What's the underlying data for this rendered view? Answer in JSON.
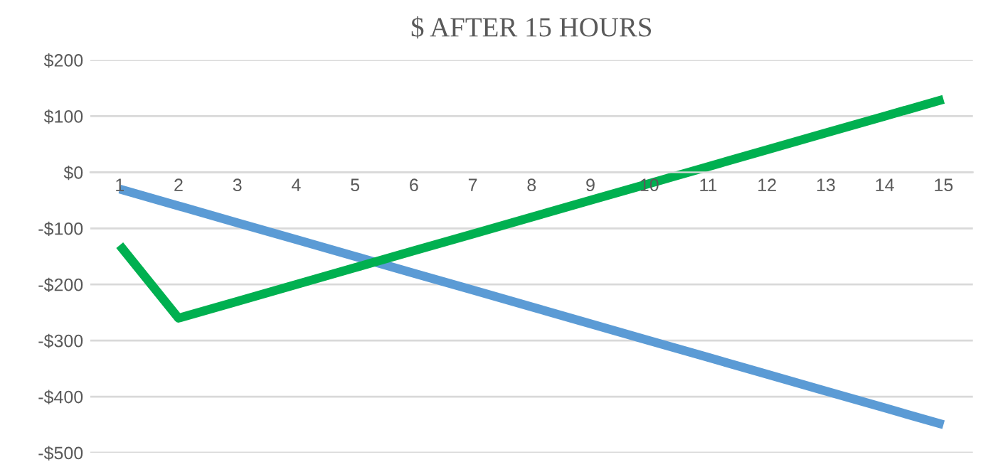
{
  "chart_data": {
    "type": "line",
    "title": "$ AFTER 15 HOURS",
    "categories": [
      "1",
      "2",
      "3",
      "4",
      "5",
      "6",
      "7",
      "8",
      "9",
      "10",
      "11",
      "12",
      "13",
      "14",
      "15"
    ],
    "series": [
      {
        "color": "#5b9bd5",
        "values": [
          -30,
          -60,
          -90,
          -120,
          -150,
          -180,
          -210,
          -240,
          -270,
          -300,
          -330,
          -360,
          -390,
          -420,
          -450
        ]
      },
      {
        "color": "#00b050",
        "values": [
          -130,
          -260,
          -230,
          -200,
          -170,
          -140,
          -110,
          -80,
          -50,
          -20,
          10,
          40,
          70,
          100,
          130
        ]
      }
    ],
    "ylim": [
      -500,
      200
    ],
    "yticks": [
      {
        "value": 200,
        "label": "$200"
      },
      {
        "value": 100,
        "label": "$100"
      },
      {
        "value": 0,
        "label": "$0"
      },
      {
        "value": -100,
        "label": "-$100"
      },
      {
        "value": -200,
        "label": "-$200"
      },
      {
        "value": -300,
        "label": "-$300"
      },
      {
        "value": -400,
        "label": "-$400"
      },
      {
        "value": -500,
        "label": "-$500"
      }
    ],
    "grid": "y",
    "legend": false,
    "marker": "none",
    "line_style": "solid"
  }
}
